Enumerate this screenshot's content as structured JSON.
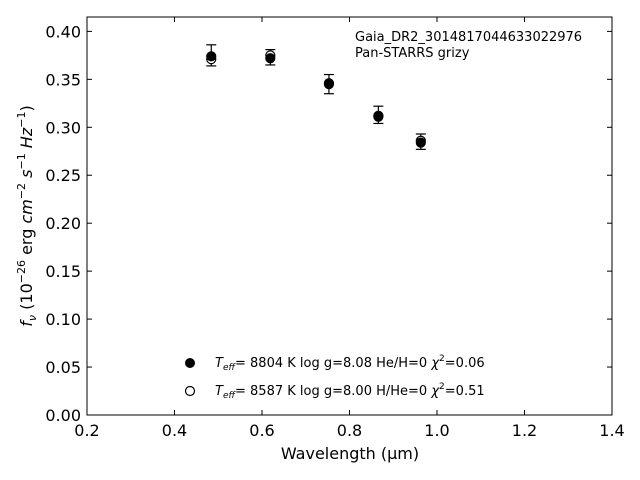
{
  "chart_data": {
    "type": "scatter",
    "xlabel": "Wavelength (μm)",
    "ylabel": "f_ν (10⁻²⁶ erg cm⁻² s⁻¹ Hz⁻¹)",
    "xlim": [
      0.2,
      1.4
    ],
    "ylim": [
      0.0,
      0.415
    ],
    "xticks": [
      "0.2",
      "0.4",
      "0.6",
      "0.8",
      "1.0",
      "1.2",
      "1.4"
    ],
    "yticks": [
      "0.00",
      "0.05",
      "0.10",
      "0.15",
      "0.20",
      "0.25",
      "0.30",
      "0.35",
      "0.40"
    ],
    "grid": false,
    "annotations": [
      "Gaia_DR2_3014817044633022976",
      "Pan-STARRS grizy"
    ],
    "observed": {
      "x": [
        0.484,
        0.619,
        0.753,
        0.866,
        0.963
      ],
      "y": [
        0.375,
        0.373,
        0.345,
        0.313,
        0.285
      ],
      "yerr": [
        0.011,
        0.008,
        0.01,
        0.009,
        0.008
      ]
    },
    "series": [
      {
        "name": "T_eff= 8804 K log g=8.08 He/H=0 χ²=0.06",
        "marker": "filled",
        "x": [
          0.484,
          0.619,
          0.753,
          0.866,
          0.963
        ],
        "y": [
          0.374,
          0.372,
          0.345,
          0.311,
          0.284
        ]
      },
      {
        "name": "T_eff= 8587 K log g=8.00 H/He=0 χ²=0.51",
        "marker": "open",
        "x": [
          0.484,
          0.619,
          0.753,
          0.866,
          0.963
        ],
        "y": [
          0.371,
          0.375,
          0.346,
          0.312,
          0.286
        ]
      }
    ],
    "legend": {
      "placement": "lower-center",
      "entries": [
        {
          "marker": "filled",
          "teff_value": "8804 K",
          "logg": "log g=8.08",
          "comp": "He/H=0",
          "chi_value": "=0.06"
        },
        {
          "marker": "open",
          "teff_value": "8587 K",
          "logg": "log g=8.00",
          "comp": "H/He=0",
          "chi_value": "=0.51"
        }
      ]
    }
  }
}
